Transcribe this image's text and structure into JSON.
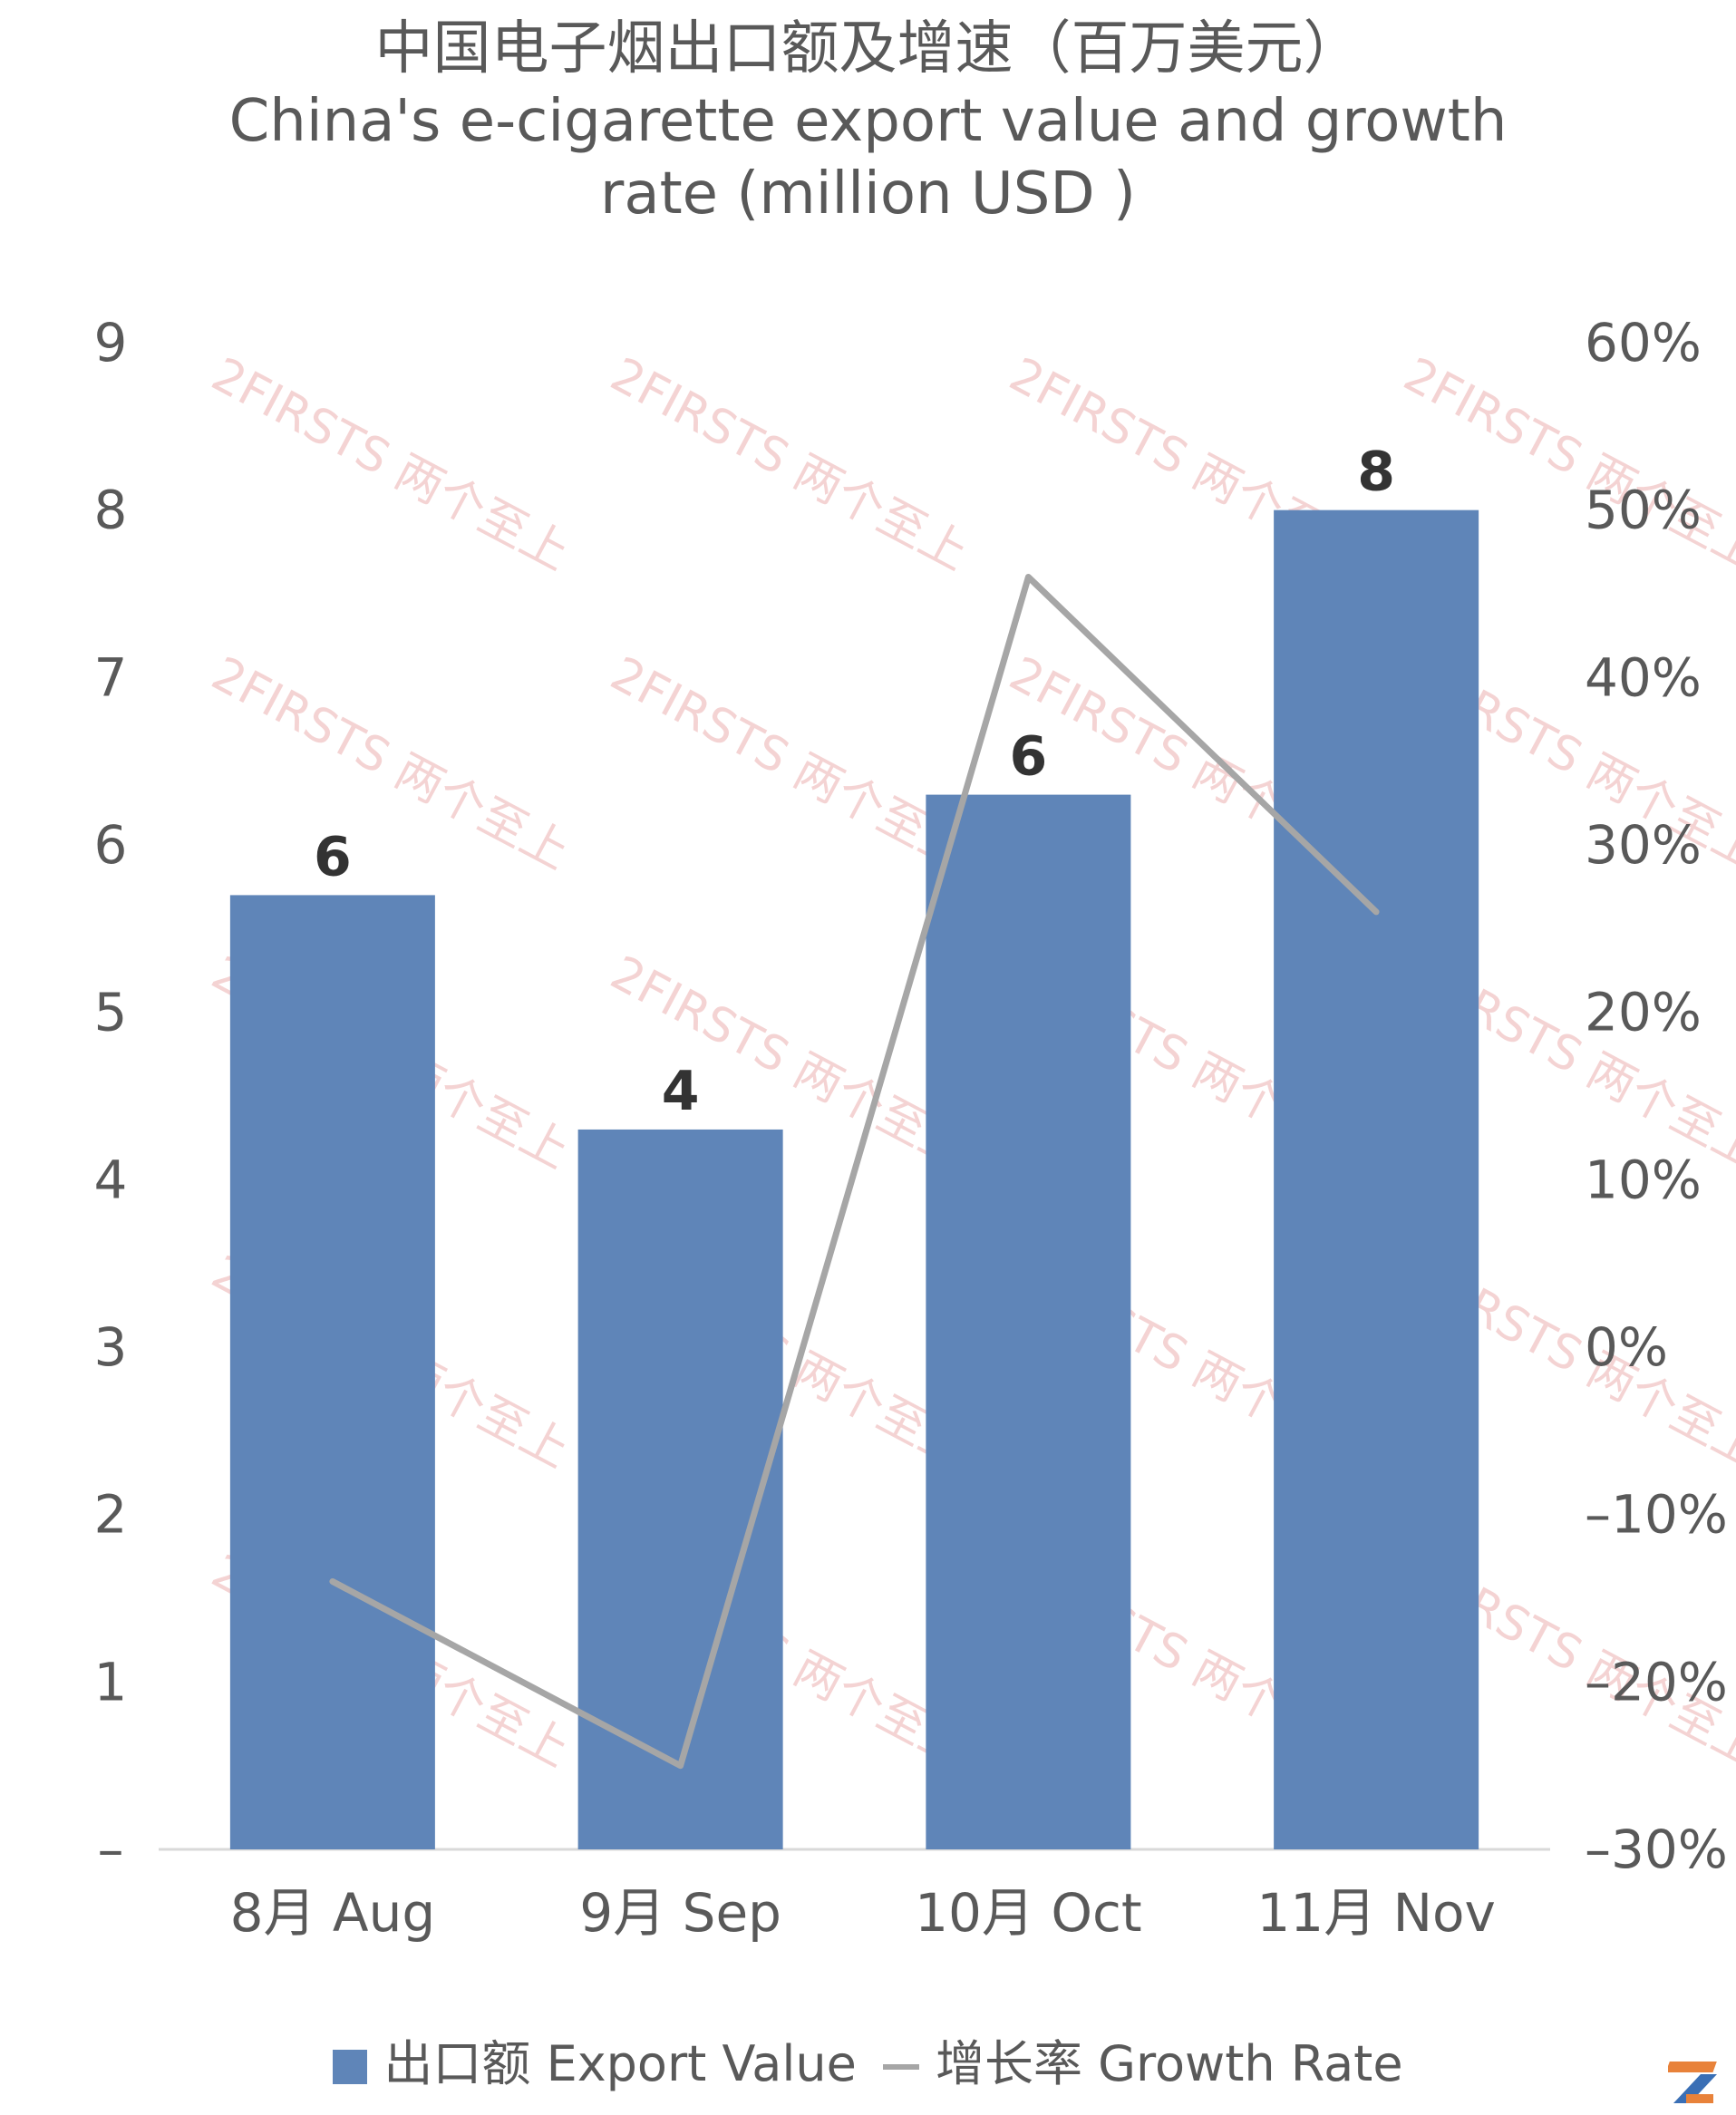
{
  "title": {
    "line1": "中国电子烟出口额及增速（百万美元）",
    "line2": "China's e-cigarette export value and growth",
    "line3": "rate (million USD )"
  },
  "chart_data": {
    "type": "bar",
    "categories": [
      "8月 Aug",
      "9月 Sep",
      "10月 Oct",
      "11月 Nov"
    ],
    "series": [
      {
        "name": "出口额 Export Value",
        "type": "bar",
        "axis": "left",
        "values": [
          5.7,
          4.3,
          6.3,
          8.0
        ],
        "data_labels": [
          "6",
          "4",
          "6",
          "8"
        ],
        "color": "#5F85B8"
      },
      {
        "name": "增长率 Growth Rate",
        "type": "line",
        "axis": "right",
        "values": [
          -14,
          -25,
          46,
          26
        ],
        "unit": "%",
        "color": "#a6a6a6"
      }
    ],
    "y_left": {
      "min": 0,
      "max": 9,
      "ticks": [
        "–",
        "1",
        "2",
        "3",
        "4",
        "5",
        "6",
        "7",
        "8",
        "9"
      ]
    },
    "y_right": {
      "min": -30,
      "max": 60,
      "ticks": [
        "–30%",
        "–20%",
        "–10%",
        "0%",
        "10%",
        "20%",
        "30%",
        "40%",
        "50%",
        "60%"
      ]
    },
    "grid": false,
    "legend_position": "bottom"
  },
  "legend": {
    "bar_label": "出口额 Export Value",
    "line_label": "增长率 Growth Rate"
  },
  "watermark": {
    "text": "2FIRSTS 两个至上"
  }
}
